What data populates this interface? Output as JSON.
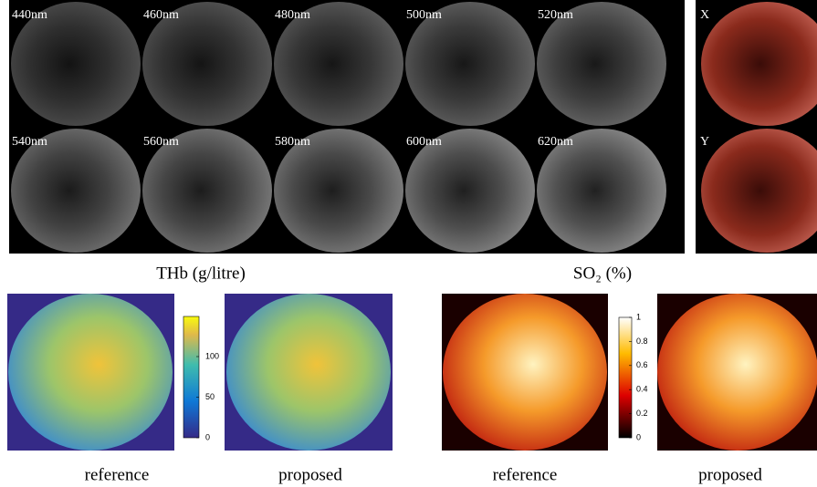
{
  "spectral_bands": {
    "labels": [
      "440nm",
      "460nm",
      "480nm",
      "500nm",
      "520nm",
      "540nm",
      "560nm",
      "580nm",
      "600nm",
      "620nm"
    ]
  },
  "rgb_views": {
    "labels": [
      "X",
      "Y"
    ]
  },
  "thb": {
    "title": "THb (g/litre)",
    "colorbar_ticks": [
      0,
      50,
      100
    ],
    "captions": [
      "reference",
      "proposed"
    ]
  },
  "so2": {
    "title": "SO₂ (%)",
    "colorbar_ticks": [
      0,
      0.2,
      0.4,
      0.6,
      0.8,
      1
    ],
    "captions": [
      "reference",
      "proposed"
    ]
  }
}
